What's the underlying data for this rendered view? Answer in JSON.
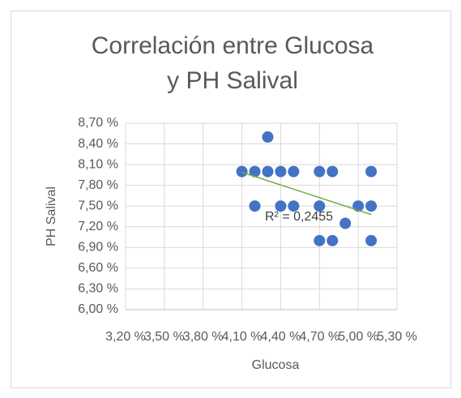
{
  "chart_data": {
    "type": "scatter",
    "title": [
      "Correlación entre Glucosa",
      "y PH Salival"
    ],
    "x_label": "Glucosa",
    "y_label": "PH Salival",
    "annotation": "R² = 0,2455",
    "series": [
      {
        "color": "#4472c4",
        "x": [
          4.1,
          4.2,
          4.2,
          4.3,
          4.3,
          4.4,
          4.4,
          4.5,
          4.5,
          4.7,
          4.7,
          4.7,
          4.8,
          4.8,
          4.9,
          5.0,
          5.1,
          5.1,
          5.1
        ],
        "values": [
          8.0,
          8.0,
          7.5,
          8.5,
          8.0,
          8.0,
          7.5,
          8.0,
          7.5,
          8.0,
          7.5,
          7.0,
          8.0,
          7.0,
          7.25,
          7.5,
          8.0,
          7.5,
          7.0
        ]
      }
    ],
    "trendline": {
      "color": "#70ad47"
    },
    "xlim": [
      3.2,
      5.3
    ],
    "xticks": [
      {
        "value": 3.2,
        "label": "3,20 %"
      },
      {
        "value": 3.5,
        "label": "3,50 %"
      },
      {
        "value": 3.8,
        "label": "3,80 %"
      },
      {
        "value": 4.1,
        "label": "4,10 %"
      },
      {
        "value": 4.4,
        "label": "4,40 %"
      },
      {
        "value": 4.7,
        "label": "4,70 %"
      },
      {
        "value": 5.0,
        "label": "5,00 %"
      },
      {
        "value": 5.3,
        "label": "5,30 %"
      }
    ],
    "ylim": [
      6.0,
      8.7
    ],
    "yticks": [
      {
        "value": 6.0,
        "label": "6,00 %"
      },
      {
        "value": 6.3,
        "label": "6,30 %"
      },
      {
        "value": 6.6,
        "label": "6,60 %"
      },
      {
        "value": 6.9,
        "label": "6,90 %"
      },
      {
        "value": 7.2,
        "label": "7,20 %"
      },
      {
        "value": 7.5,
        "label": "7,50 %"
      },
      {
        "value": 7.8,
        "label": "7,80 %"
      },
      {
        "value": 8.1,
        "label": "8,10 %"
      },
      {
        "value": 8.4,
        "label": "8,40 %"
      },
      {
        "value": 8.7,
        "label": "8,70 %"
      }
    ],
    "grid": true
  }
}
